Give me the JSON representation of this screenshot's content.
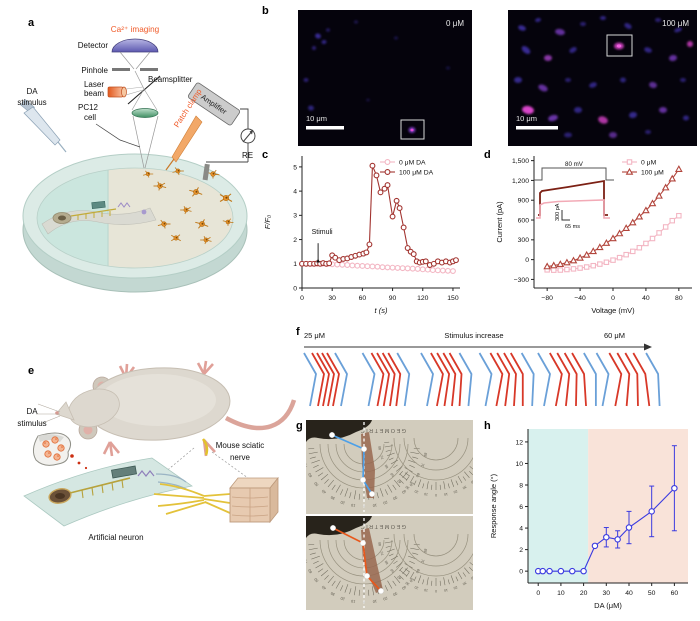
{
  "panels": {
    "a": {
      "letter": "a",
      "ca_imaging": "Ca²⁺ imaging",
      "detector": "Detector",
      "pinhole": "Pinhole",
      "laser_line1": "Laser",
      "laser_line2": "beam",
      "beamsplitter": "Beamsplitter",
      "patch_clamp": "Patch clamp",
      "amplifier": "Amplifier",
      "pc12_line1": "PC12",
      "pc12_line2": "cell",
      "da_line1": "DA",
      "da_line2": "stimulus",
      "re": "RE",
      "accent_color": "#f05a28"
    },
    "b": {
      "letter": "b",
      "left_label": "0 μM",
      "right_label": "100 μM",
      "scale_bar": "10 μm"
    },
    "c": {
      "letter": "c"
    },
    "d": {
      "letter": "d"
    },
    "e": {
      "letter": "e",
      "da_line1": "DA",
      "da_line2": "stimulus",
      "nerve_line1": "Mouse sciatic",
      "nerve_line2": "nerve",
      "artificial_neuron": "Artificial neuron"
    },
    "f": {
      "letter": "f",
      "left_label": "25 μM",
      "center_label": "Stimulus increase",
      "right_label": "60 μM",
      "groups": 6,
      "colors": {
        "blue": "#6aa0d8",
        "red": "#d83828"
      }
    },
    "g": {
      "letter": "g",
      "brand": "GEOMETRIC",
      "angle_labels": [
        80,
        70,
        60,
        50,
        40,
        30,
        20,
        10,
        0
      ],
      "top_trace_color": "#4da0e8",
      "bottom_trace_color": "#e8581c"
    },
    "h": {
      "letter": "h"
    }
  },
  "chart_data": [
    {
      "id": "c",
      "type": "line",
      "xlabel": "t (s)",
      "ylabel": "F/F₀",
      "italic": true,
      "xlim": [
        0,
        157
      ],
      "ylim": [
        0,
        5.45
      ],
      "xticks": [
        0,
        30,
        60,
        90,
        120,
        150
      ],
      "yticks": [
        0,
        1,
        2,
        3,
        4,
        5
      ],
      "legend": [
        122,
        16
      ],
      "annotation": {
        "text": "Stimuli",
        "x": 16,
        "ty": 2.22,
        "from": 1.85,
        "to": 1.22
      },
      "series": [
        {
          "name": "0 μM DA",
          "color": "#f3b6c3",
          "marker": "circle",
          "x": [
            0,
            5,
            10,
            15,
            20,
            25,
            30,
            35,
            40,
            45,
            50,
            55,
            60,
            65,
            70,
            75,
            80,
            85,
            90,
            95,
            100,
            105,
            110,
            115,
            120,
            125,
            130,
            135,
            140,
            145,
            150
          ],
          "y": [
            1.0,
            1.0,
            1.0,
            1.0,
            1.0,
            0.99,
            0.98,
            0.97,
            0.96,
            0.95,
            0.93,
            0.92,
            0.91,
            0.9,
            0.89,
            0.88,
            0.86,
            0.85,
            0.84,
            0.83,
            0.82,
            0.81,
            0.8,
            0.79,
            0.77,
            0.76,
            0.74,
            0.73,
            0.72,
            0.71,
            0.7
          ]
        },
        {
          "name": "100 μM DA",
          "color": "#a23430",
          "marker": "circle",
          "x": [
            0,
            4,
            8,
            12,
            15,
            18,
            21,
            24,
            27,
            30,
            33,
            37,
            41,
            45,
            49,
            53,
            57,
            61,
            64,
            67,
            70,
            74,
            78,
            82,
            85,
            90,
            94,
            97,
            101,
            105,
            108,
            111,
            114,
            117,
            120,
            123,
            127,
            131,
            135,
            139,
            143,
            147,
            150,
            153
          ],
          "y": [
            1.0,
            1.0,
            1.0,
            1.0,
            1.02,
            1.0,
            1.03,
            1.0,
            1.02,
            1.35,
            1.25,
            1.15,
            1.2,
            1.22,
            1.28,
            1.33,
            1.38,
            1.42,
            1.47,
            1.8,
            5.05,
            4.65,
            3.95,
            4.1,
            4.25,
            2.95,
            3.6,
            3.3,
            2.5,
            1.65,
            1.5,
            1.4,
            1.1,
            1.05,
            1.08,
            1.1,
            0.95,
            1.0,
            1.1,
            1.05,
            1.1,
            1.05,
            1.1,
            1.15
          ]
        }
      ]
    },
    {
      "id": "d",
      "type": "line",
      "xlabel": "Voltage (mV)",
      "ylabel": "Current (pA)",
      "xlim": [
        -96,
        96
      ],
      "ylim": [
        -430,
        1570
      ],
      "xticks": [
        -80,
        -40,
        0,
        40,
        80
      ],
      "xtick_labels": [
        "−80",
        "−40",
        "0",
        "40",
        "80"
      ],
      "yticks": [
        -300,
        0,
        300,
        600,
        900,
        1200,
        1500
      ],
      "ytick_labels": [
        "−300",
        "0",
        "300",
        "600",
        "900",
        "1,200",
        "1,500"
      ],
      "legend": [
        140,
        16
      ],
      "inset": {
        "pulse_label": "80 mV",
        "vscale": "300 pA",
        "hscale": "65 ms"
      },
      "series": [
        {
          "name": "0 μM",
          "color": "#f3b6c3",
          "marker": "square",
          "x": [
            -80,
            -72,
            -64,
            -56,
            -48,
            -40,
            -32,
            -24,
            -16,
            -8,
            0,
            8,
            16,
            24,
            32,
            40,
            48,
            56,
            64,
            72,
            80
          ],
          "y": [
            -155,
            -160,
            -158,
            -150,
            -140,
            -128,
            -112,
            -92,
            -68,
            -40,
            -8,
            30,
            75,
            125,
            180,
            245,
            320,
            405,
            495,
            590,
            665
          ]
        },
        {
          "name": "100 μM",
          "color": "#b2453c",
          "marker": "triangle",
          "x": [
            -80,
            -72,
            -64,
            -56,
            -48,
            -40,
            -32,
            -24,
            -16,
            -8,
            0,
            8,
            16,
            24,
            32,
            40,
            48,
            56,
            64,
            72,
            80
          ],
          "y": [
            -105,
            -90,
            -70,
            -45,
            -15,
            25,
            70,
            125,
            185,
            250,
            320,
            395,
            475,
            560,
            650,
            745,
            850,
            965,
            1090,
            1225,
            1370
          ]
        }
      ]
    },
    {
      "id": "h",
      "type": "line",
      "xlabel": "DA (μM)",
      "ylabel": "Response angle (°)",
      "xlim": [
        -4.5,
        66
      ],
      "ylim": [
        -1.1,
        13.2
      ],
      "xticks": [
        0,
        10,
        20,
        30,
        40,
        50,
        60
      ],
      "yticks": [
        0,
        2,
        4,
        6,
        8,
        10,
        12
      ],
      "regions": [
        {
          "from": -4.5,
          "to": 22,
          "color": "#d8f1ee"
        },
        {
          "from": 22,
          "to": 66,
          "color": "#f9e3d9"
        }
      ],
      "series": [
        {
          "name": "",
          "color": "#3b3be0",
          "marker": "circle",
          "msize": 2.7,
          "x": [
            0,
            2,
            5,
            10,
            15,
            20,
            25,
            30,
            35,
            40,
            50,
            60
          ],
          "y": [
            0,
            0,
            0,
            0,
            0,
            0,
            2.35,
            3.15,
            2.95,
            4.05,
            5.55,
            7.7
          ],
          "yerr": [
            0,
            0,
            0,
            0,
            0,
            0,
            0.15,
            0.9,
            0.8,
            1.5,
            2.35,
            3.95
          ]
        }
      ]
    }
  ]
}
